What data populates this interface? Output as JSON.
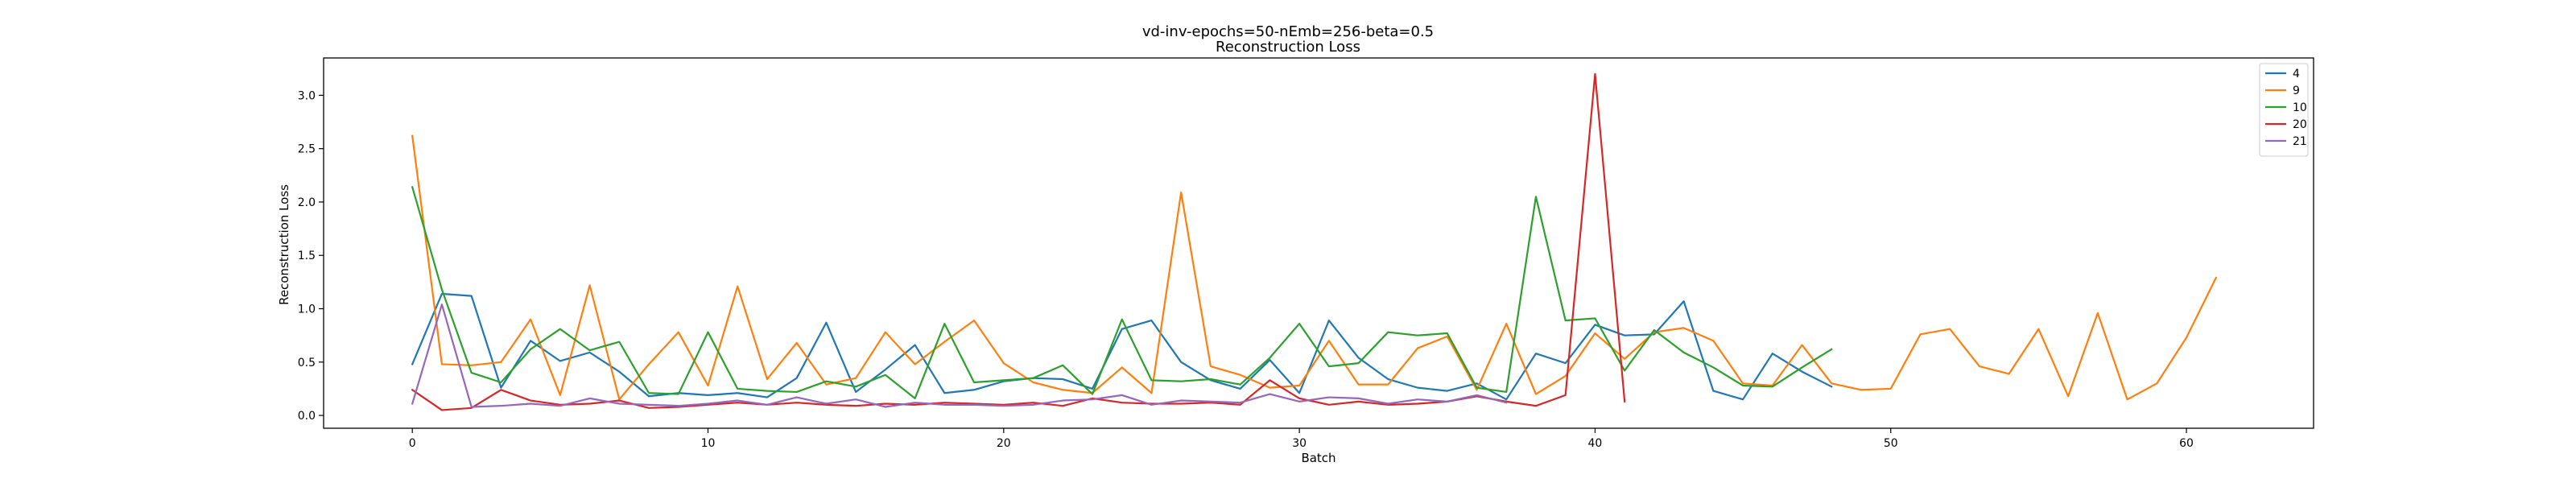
{
  "chart_data": {
    "type": "line",
    "title": "vd-inv-epochs=50-nEmb=256-beta=0.5",
    "subtitle": "Reconstruction Loss",
    "xlabel": "Batch",
    "ylabel": "Reconstruction Loss",
    "xlim": [
      -3,
      64.3
    ],
    "ylim": [
      -0.12,
      3.35
    ],
    "xticks": [
      0,
      10,
      20,
      30,
      40,
      50,
      60
    ],
    "yticks": [
      0.0,
      0.5,
      1.0,
      1.5,
      2.0,
      2.5,
      3.0
    ],
    "xtick_labels": [
      "0",
      "10",
      "20",
      "30",
      "40",
      "50",
      "60"
    ],
    "ytick_labels": [
      "0.0",
      "0.5",
      "1.0",
      "1.5",
      "2.0",
      "2.5",
      "3.0"
    ],
    "grid": false,
    "legend_position": "top-right",
    "series": [
      {
        "name": "4",
        "color": "#1f77b4",
        "values": [
          0.48,
          1.14,
          1.12,
          0.26,
          0.7,
          0.51,
          0.59,
          0.41,
          0.18,
          0.21,
          0.19,
          0.21,
          0.17,
          0.35,
          0.87,
          0.22,
          0.43,
          0.66,
          0.21,
          0.24,
          0.32,
          0.35,
          0.34,
          0.25,
          0.81,
          0.89,
          0.5,
          0.33,
          0.25,
          0.52,
          0.21,
          0.89,
          0.54,
          0.34,
          0.26,
          0.23,
          0.3,
          0.15,
          0.58,
          0.49,
          0.85,
          0.75,
          0.76,
          1.07,
          0.23,
          0.15,
          0.58,
          0.41,
          0.27
        ]
      },
      {
        "name": "9",
        "color": "#ff7f0e",
        "values": [
          2.62,
          0.48,
          0.47,
          0.5,
          0.9,
          0.19,
          1.22,
          0.15,
          0.48,
          0.78,
          0.28,
          1.21,
          0.34,
          0.68,
          0.29,
          0.35,
          0.78,
          0.48,
          0.69,
          0.89,
          0.49,
          0.31,
          0.24,
          0.21,
          0.45,
          0.21,
          2.09,
          0.46,
          0.38,
          0.26,
          0.28,
          0.7,
          0.29,
          0.29,
          0.63,
          0.74,
          0.24,
          0.86,
          0.2,
          0.37,
          0.77,
          0.53,
          0.78,
          0.82,
          0.7,
          0.3,
          0.28,
          0.66,
          0.3,
          0.24,
          0.25,
          0.76,
          0.81,
          0.46,
          0.39,
          0.81,
          0.18,
          0.96,
          0.15,
          0.3,
          0.73,
          1.29
        ]
      },
      {
        "name": "10",
        "color": "#2ca02c",
        "values": [
          2.14,
          1.18,
          0.4,
          0.31,
          0.62,
          0.81,
          0.61,
          0.69,
          0.21,
          0.2,
          0.78,
          0.25,
          0.23,
          0.22,
          0.32,
          0.27,
          0.38,
          0.16,
          0.86,
          0.31,
          0.33,
          0.35,
          0.47,
          0.2,
          0.9,
          0.33,
          0.32,
          0.34,
          0.29,
          0.54,
          0.86,
          0.46,
          0.49,
          0.78,
          0.75,
          0.77,
          0.26,
          0.22,
          2.05,
          0.89,
          0.91,
          0.42,
          0.8,
          0.59,
          0.45,
          0.28,
          0.27,
          0.45,
          0.62
        ]
      },
      {
        "name": "20",
        "color": "#d62728",
        "values": [
          0.24,
          0.05,
          0.07,
          0.24,
          0.14,
          0.1,
          0.11,
          0.14,
          0.07,
          0.08,
          0.1,
          0.12,
          0.1,
          0.12,
          0.1,
          0.09,
          0.11,
          0.1,
          0.12,
          0.11,
          0.1,
          0.12,
          0.09,
          0.16,
          0.12,
          0.11,
          0.11,
          0.12,
          0.1,
          0.33,
          0.16,
          0.1,
          0.13,
          0.1,
          0.11,
          0.13,
          0.18,
          0.13,
          0.09,
          0.19,
          3.2,
          0.13
        ]
      },
      {
        "name": "21",
        "color": "#9467bd",
        "values": [
          0.11,
          1.04,
          0.08,
          0.09,
          0.11,
          0.09,
          0.16,
          0.11,
          0.1,
          0.09,
          0.11,
          0.14,
          0.1,
          0.17,
          0.11,
          0.15,
          0.08,
          0.12,
          0.1,
          0.1,
          0.09,
          0.1,
          0.14,
          0.15,
          0.19,
          0.1,
          0.14,
          0.13,
          0.12,
          0.2,
          0.13,
          0.17,
          0.16,
          0.11,
          0.15,
          0.13,
          0.19,
          0.12
        ]
      }
    ]
  }
}
